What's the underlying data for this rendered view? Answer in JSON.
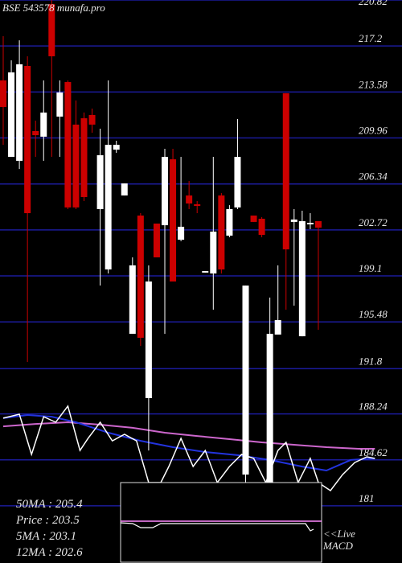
{
  "chart_data": {
    "type": "candlestick",
    "title": "BSE 543578 munafa.pro",
    "ylim": [
      176.5,
      220.82
    ],
    "yticks": [
      220.82,
      217.2,
      213.58,
      209.96,
      206.34,
      202.72,
      199.1,
      195.48,
      191.8,
      188.24,
      184.62,
      181
    ],
    "grid": true,
    "grid_color": "#1b1b9a",
    "up_color": "#ffffff",
    "down_color": "#cc0000",
    "open": [
      214.49,
      208.47,
      208.16,
      215.63,
      210.5,
      210.06,
      220.5,
      211.64,
      214.36,
      211.01,
      211.51,
      211.77,
      204.36,
      199.61,
      209.04,
      205.43,
      194.54,
      203.85,
      189.48,
      203.22,
      203.09,
      208.28,
      201.95,
      205.43,
      204.74,
      199.36,
      199.29,
      205.43,
      202.27,
      204.49,
      183.46,
      203.85,
      203.6,
      182.83,
      194.48,
      213.48,
      203.35,
      194.35,
      203.16,
      203.41
    ],
    "high": [
      217.97,
      216.07,
      217.65,
      216.39,
      211.32,
      214.49,
      220.82,
      214.49,
      214.49,
      212.91,
      211.96,
      212.27,
      210.69,
      214.49,
      209.74,
      206.38,
      200.56,
      204.04,
      199.93,
      203.22,
      209.11,
      209.11,
      208.47,
      206.57,
      204.99,
      199.48,
      208.47,
      205.62,
      204.67,
      211.45,
      198.34,
      203.85,
      203.73,
      197.39,
      199.93,
      213.48,
      204.36,
      204.23,
      204.04,
      203.41
    ],
    "low": [
      209.42,
      208.47,
      207.52,
      192.33,
      208.47,
      208.16,
      208.47,
      208.47,
      204.36,
      204.36,
      204.99,
      210.37,
      198.34,
      199.29,
      208.79,
      205.43,
      194.54,
      193.59,
      185.36,
      200.56,
      194.54,
      198.66,
      201.83,
      204.36,
      204.04,
      199.36,
      196.44,
      199.29,
      202.14,
      204.36,
      182.83,
      203.35,
      202.14,
      182.83,
      194.48,
      196.44,
      196.76,
      194.35,
      202.78,
      194.86
    ],
    "close": [
      212.4,
      215.12,
      215.76,
      204.04,
      210.18,
      211.96,
      216.39,
      213.54,
      204.49,
      204.49,
      205.31,
      211.01,
      208.6,
      209.42,
      209.42,
      206.38,
      199.93,
      194.23,
      198.66,
      200.56,
      208.47,
      198.66,
      202.97,
      204.8,
      204.61,
      199.48,
      202.59,
      199.61,
      204.36,
      208.47,
      198.34,
      203.35,
      202.33,
      194.54,
      195.62,
      201.19,
      203.54,
      203.41,
      203.28,
      202.9
    ],
    "overlays": [
      {
        "color": "#cc66cc",
        "x": [
          0,
          4,
          8,
          12,
          16,
          20,
          24,
          28,
          32,
          36,
          40,
          44,
          46
        ],
        "values": [
          187.26,
          187.45,
          187.58,
          187.39,
          187.14,
          186.76,
          186.5,
          186.25,
          186.0,
          185.81,
          185.62,
          185.49,
          185.49
        ]
      },
      {
        "color": "#2233dd",
        "x": [
          0,
          3,
          6,
          9,
          13,
          17,
          21,
          25,
          29,
          33,
          37,
          40,
          43,
          46
        ],
        "values": [
          187.9,
          188.15,
          188.02,
          187.58,
          186.76,
          186.12,
          185.62,
          185.24,
          184.99,
          184.61,
          184.09,
          183.78,
          184.61,
          184.74
        ]
      },
      {
        "color": "#ffffff",
        "x": [
          0,
          2,
          3.5,
          5,
          6.5,
          8,
          9.5,
          10.5,
          12,
          13.5,
          15,
          16.5,
          18,
          19.5,
          20.5,
          22,
          23.5,
          25,
          26.5,
          28,
          29.5,
          31,
          32.5,
          34,
          35,
          36.5,
          38,
          39,
          40.5,
          42,
          43.5,
          45,
          46
        ],
        "values": [
          187.9,
          188.21,
          185.05,
          188.02,
          187.58,
          188.85,
          185.36,
          186.31,
          187.58,
          186.12,
          186.63,
          186.12,
          182.83,
          182.83,
          184.1,
          186.31,
          184.1,
          185.36,
          182.83,
          184.1,
          185.05,
          184.73,
          182.83,
          185.36,
          186.0,
          182.83,
          184.73,
          182.83,
          182.2,
          183.46,
          184.41,
          184.86,
          184.73
        ]
      }
    ],
    "info": [
      "50MA : 205.4",
      "Price  : 203.5",
      "5MA : 203.1",
      "12MA : 202.6"
    ],
    "macd_label": [
      "<<Live",
      "MACD"
    ]
  }
}
